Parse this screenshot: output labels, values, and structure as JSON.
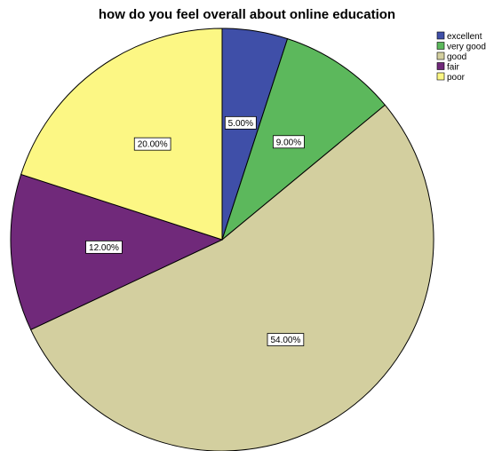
{
  "chart_data": {
    "type": "pie",
    "title": "how do you feel overall about online education",
    "categories": [
      "excellent",
      "very good",
      "good",
      "fair",
      "poor"
    ],
    "values": [
      5.0,
      9.0,
      54.0,
      12.0,
      20.0
    ],
    "labels": [
      "5.00%",
      "9.00%",
      "54.00%",
      "12.00%",
      "20.00%"
    ],
    "colors": [
      "#3f4fa8",
      "#5cb85c",
      "#d3cf9f",
      "#70297a",
      "#fcf784"
    ],
    "legend_position": "top-right",
    "start_angle_deg": 0,
    "direction": "clockwise"
  }
}
